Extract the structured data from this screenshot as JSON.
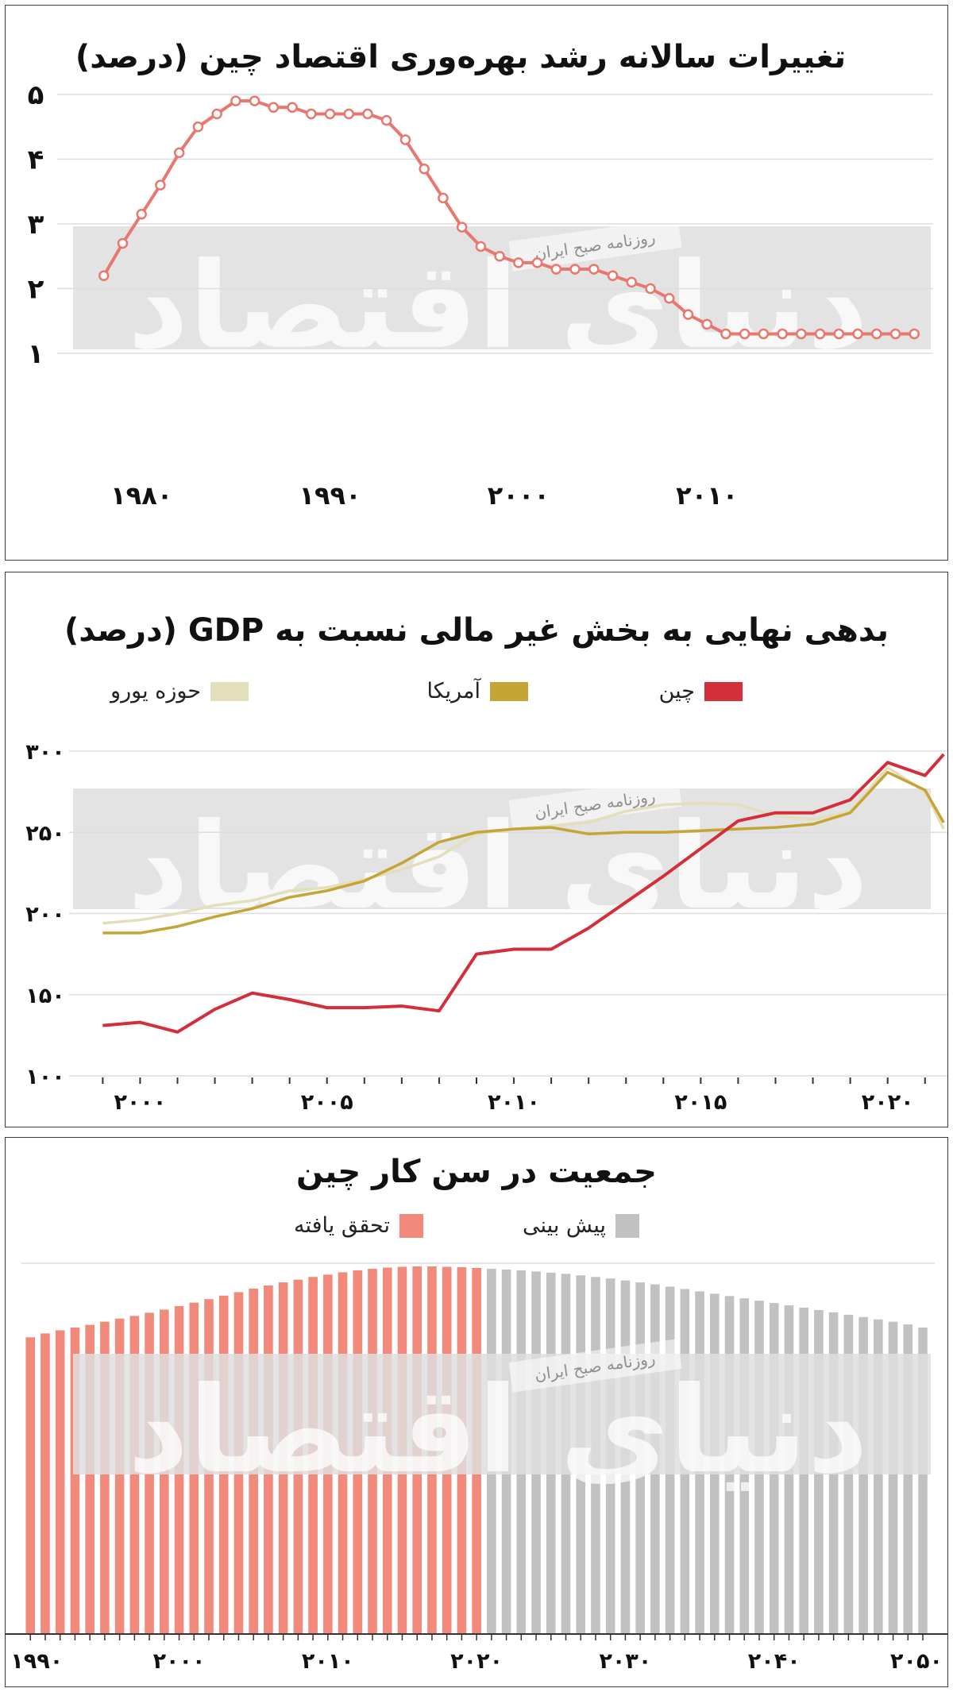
{
  "charts": {
    "productivity": {
      "title": "تغییرات سالانه رشد بهره‌وری اقتصاد چین (درصد)",
      "y_ticks": [
        "۵",
        "۴",
        "۳",
        "۲",
        "۱"
      ],
      "x_ticks": [
        "۱۹۸۰",
        "۱۹۹۰",
        "۲۰۰۰",
        "۲۰۱۰"
      ]
    },
    "debt": {
      "title": "بدهی نهایی به بخش غیر مالی نسبت به GDP (درصد)",
      "legend": {
        "china": "چین",
        "usa": "آمریکا",
        "euro": "حوزه یورو"
      },
      "y_ticks": [
        "۳۰۰",
        "۲۵۰",
        "۲۰۰",
        "۱۵۰",
        "۱۰۰"
      ],
      "x_ticks": [
        "۲۰۰۰",
        "۲۰۰۵",
        "۲۰۱۰",
        "۲۰۱۵",
        "۲۰۲۰"
      ]
    },
    "population": {
      "title": "جمعیت در سن کار چین",
      "legend": {
        "actual": "تحقق یافته",
        "forecast": "پیش بینی"
      },
      "x_ticks": [
        "۱۹۹۰",
        "۲۰۰۰",
        "۲۰۱۰",
        "۲۰۲۰",
        "۲۰۳۰",
        "۲۰۴۰",
        "۲۰۵۰"
      ]
    }
  },
  "watermark": {
    "brand_text": "دنیای اقتصاد",
    "badge_text": "روزنامه صبح ایران"
  },
  "colors": {
    "productivity_line": "#e8776d",
    "china": "#d32f3a",
    "usa": "#c4a536",
    "euro": "#e3dfbb",
    "actual_bar": "#f28a7c",
    "forecast_bar": "#c1c1c1",
    "grid": "#dddddd",
    "watermark_band": "#dedede"
  },
  "chart_data": [
    {
      "type": "line",
      "title": "تغییرات سالانه رشد بهره‌وری اقتصاد چین (درصد)",
      "xlim": [
        1977,
        2022
      ],
      "ylim": [
        1,
        5
      ],
      "series": [
        {
          "x": [
            1978,
            1979,
            1980,
            1981,
            1982,
            1983,
            1984,
            1985,
            1986,
            1987,
            1988,
            1989,
            1990,
            1991,
            1992,
            1993,
            1994,
            1995,
            1996,
            1997,
            1998,
            1999,
            2000,
            2001,
            2002,
            2003,
            2004,
            2005,
            2006,
            2007,
            2008,
            2009,
            2010,
            2011,
            2012,
            2013,
            2014,
            2015,
            2016,
            2017,
            2018,
            2019,
            2020,
            2021
          ],
          "values": [
            2.2,
            2.7,
            3.15,
            3.6,
            4.1,
            4.5,
            4.7,
            4.9,
            4.9,
            4.8,
            4.8,
            4.7,
            4.7,
            4.7,
            4.7,
            4.6,
            4.3,
            3.85,
            3.4,
            2.95,
            2.65,
            2.5,
            2.4,
            2.4,
            2.3,
            2.3,
            2.3,
            2.2,
            2.1,
            2.0,
            1.85,
            1.6,
            1.45,
            1.3,
            1.3,
            1.3,
            1.3,
            1.3,
            1.3,
            1.3,
            1.3,
            1.3,
            1.3,
            1.3
          ]
        }
      ]
    },
    {
      "type": "line",
      "title": "بدهی نهایی به بخش غیر مالی نسبت به GDP (درصد)",
      "xlim": [
        1998.1,
        2021.6
      ],
      "ylim": [
        100,
        300
      ],
      "x": [
        1999,
        2000,
        2001,
        2002,
        2003,
        2004,
        2005,
        2006,
        2007,
        2008,
        2009,
        2010,
        2011,
        2012,
        2013,
        2014,
        2015,
        2016,
        2017,
        2018,
        2019,
        2020,
        2021,
        2021.5
      ],
      "series": [
        {
          "name": "حوزه یورو",
          "values": [
            194,
            196,
            200,
            205,
            208,
            214,
            216,
            221,
            227,
            235,
            249,
            252,
            254,
            256,
            263,
            267,
            268,
            267,
            260,
            258,
            263,
            290,
            275,
            252
          ]
        },
        {
          "name": "آمریکا",
          "values": [
            188,
            188,
            192,
            198,
            203,
            210,
            214,
            220,
            231,
            244,
            250,
            252,
            253,
            249,
            250,
            250,
            251,
            252,
            253,
            255,
            262,
            287,
            276,
            256
          ]
        },
        {
          "name": "چین",
          "values": [
            131,
            133,
            127,
            141,
            151,
            147,
            142,
            142,
            143,
            140,
            175,
            178,
            178,
            191,
            207,
            223,
            240,
            257,
            262,
            262,
            270,
            293,
            285,
            298
          ]
        }
      ]
    },
    {
      "type": "bar",
      "title": "جمعیت در سن کار چین",
      "xlim": [
        1989.4,
        2050.8
      ],
      "series": [
        {
          "name": "تحقق یافته",
          "x_start": 1990,
          "x_end": 2020,
          "values": [
            76,
            77,
            77.8,
            78.5,
            79.2,
            80,
            80.8,
            81.5,
            82.3,
            83.1,
            84,
            84.9,
            85.8,
            86.7,
            87.6,
            88.5,
            89.3,
            90.1,
            90.8,
            91.5,
            92.1,
            92.7,
            93.2,
            93.6,
            93.9,
            94.1,
            94.2,
            94.2,
            94.1,
            94,
            93.8
          ]
        },
        {
          "name": "پیش بینی",
          "x_start": 2021,
          "x_end": 2050,
          "values": [
            93.6,
            93.4,
            93.2,
            92.9,
            92.6,
            92.3,
            91.9,
            91.5,
            91.1,
            90.6,
            90.1,
            89.6,
            89,
            88.4,
            87.8,
            87.2,
            86.6,
            86,
            85.4,
            84.8,
            84.2,
            83.6,
            83,
            82.4,
            81.8,
            81.2,
            80.6,
            80,
            79.3,
            78.5
          ]
        }
      ]
    }
  ]
}
